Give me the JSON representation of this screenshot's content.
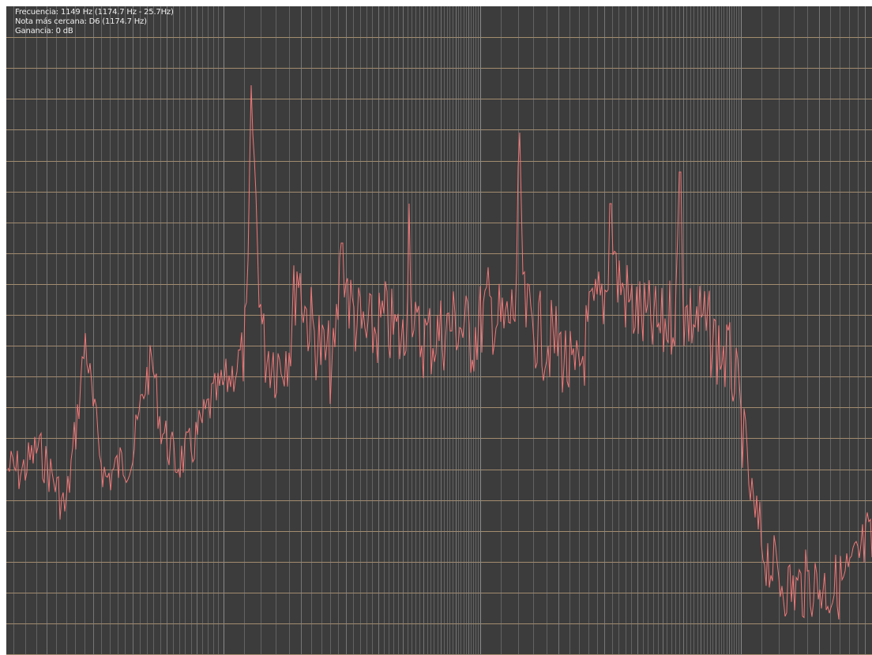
{
  "readouts": {
    "frequency": "Frecuencia: 1149 Hz (1174.7 Hz - 25.7Hz)",
    "nearest_note": "Nota más cercana: D6 (1174.7 Hz)",
    "gain": "Ganancia: 0 dB"
  },
  "colors": {
    "background": "#3c3c3c",
    "grid_horizontal": "#b59a78",
    "grid_vertical": "#8a8a8a",
    "spectrum_line": "#f07878"
  },
  "chart_data": {
    "type": "line",
    "x_scale": "log",
    "y_unit": "dB",
    "series": [
      {
        "color": "#f07878"
      }
    ]
  }
}
